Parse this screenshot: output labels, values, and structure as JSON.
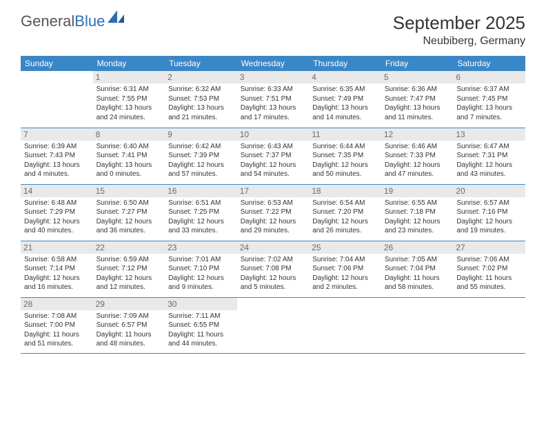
{
  "logo": {
    "text1": "General",
    "text2": "Blue"
  },
  "title": "September 2025",
  "subtitle": "Neubiberg, Germany",
  "colors": {
    "header_bg": "#3a87c7",
    "header_text": "#ffffff",
    "row_border": "#3a87c7",
    "daynum_bg": "#e9e9e9",
    "daynum_text": "#6b6b6b",
    "body_text": "#333333",
    "logo_gray": "#555555",
    "logo_blue": "#2a6fb5",
    "page_bg": "#ffffff"
  },
  "daysOfWeek": [
    "Sunday",
    "Monday",
    "Tuesday",
    "Wednesday",
    "Thursday",
    "Friday",
    "Saturday"
  ],
  "weeks": [
    [
      {
        "n": "",
        "sunrise": "",
        "sunset": "",
        "daylight1": "",
        "daylight2": ""
      },
      {
        "n": "1",
        "sunrise": "Sunrise: 6:31 AM",
        "sunset": "Sunset: 7:55 PM",
        "daylight1": "Daylight: 13 hours",
        "daylight2": "and 24 minutes."
      },
      {
        "n": "2",
        "sunrise": "Sunrise: 6:32 AM",
        "sunset": "Sunset: 7:53 PM",
        "daylight1": "Daylight: 13 hours",
        "daylight2": "and 21 minutes."
      },
      {
        "n": "3",
        "sunrise": "Sunrise: 6:33 AM",
        "sunset": "Sunset: 7:51 PM",
        "daylight1": "Daylight: 13 hours",
        "daylight2": "and 17 minutes."
      },
      {
        "n": "4",
        "sunrise": "Sunrise: 6:35 AM",
        "sunset": "Sunset: 7:49 PM",
        "daylight1": "Daylight: 13 hours",
        "daylight2": "and 14 minutes."
      },
      {
        "n": "5",
        "sunrise": "Sunrise: 6:36 AM",
        "sunset": "Sunset: 7:47 PM",
        "daylight1": "Daylight: 13 hours",
        "daylight2": "and 11 minutes."
      },
      {
        "n": "6",
        "sunrise": "Sunrise: 6:37 AM",
        "sunset": "Sunset: 7:45 PM",
        "daylight1": "Daylight: 13 hours",
        "daylight2": "and 7 minutes."
      }
    ],
    [
      {
        "n": "7",
        "sunrise": "Sunrise: 6:39 AM",
        "sunset": "Sunset: 7:43 PM",
        "daylight1": "Daylight: 13 hours",
        "daylight2": "and 4 minutes."
      },
      {
        "n": "8",
        "sunrise": "Sunrise: 6:40 AM",
        "sunset": "Sunset: 7:41 PM",
        "daylight1": "Daylight: 13 hours",
        "daylight2": "and 0 minutes."
      },
      {
        "n": "9",
        "sunrise": "Sunrise: 6:42 AM",
        "sunset": "Sunset: 7:39 PM",
        "daylight1": "Daylight: 12 hours",
        "daylight2": "and 57 minutes."
      },
      {
        "n": "10",
        "sunrise": "Sunrise: 6:43 AM",
        "sunset": "Sunset: 7:37 PM",
        "daylight1": "Daylight: 12 hours",
        "daylight2": "and 54 minutes."
      },
      {
        "n": "11",
        "sunrise": "Sunrise: 6:44 AM",
        "sunset": "Sunset: 7:35 PM",
        "daylight1": "Daylight: 12 hours",
        "daylight2": "and 50 minutes."
      },
      {
        "n": "12",
        "sunrise": "Sunrise: 6:46 AM",
        "sunset": "Sunset: 7:33 PM",
        "daylight1": "Daylight: 12 hours",
        "daylight2": "and 47 minutes."
      },
      {
        "n": "13",
        "sunrise": "Sunrise: 6:47 AM",
        "sunset": "Sunset: 7:31 PM",
        "daylight1": "Daylight: 12 hours",
        "daylight2": "and 43 minutes."
      }
    ],
    [
      {
        "n": "14",
        "sunrise": "Sunrise: 6:48 AM",
        "sunset": "Sunset: 7:29 PM",
        "daylight1": "Daylight: 12 hours",
        "daylight2": "and 40 minutes."
      },
      {
        "n": "15",
        "sunrise": "Sunrise: 6:50 AM",
        "sunset": "Sunset: 7:27 PM",
        "daylight1": "Daylight: 12 hours",
        "daylight2": "and 36 minutes."
      },
      {
        "n": "16",
        "sunrise": "Sunrise: 6:51 AM",
        "sunset": "Sunset: 7:25 PM",
        "daylight1": "Daylight: 12 hours",
        "daylight2": "and 33 minutes."
      },
      {
        "n": "17",
        "sunrise": "Sunrise: 6:53 AM",
        "sunset": "Sunset: 7:22 PM",
        "daylight1": "Daylight: 12 hours",
        "daylight2": "and 29 minutes."
      },
      {
        "n": "18",
        "sunrise": "Sunrise: 6:54 AM",
        "sunset": "Sunset: 7:20 PM",
        "daylight1": "Daylight: 12 hours",
        "daylight2": "and 26 minutes."
      },
      {
        "n": "19",
        "sunrise": "Sunrise: 6:55 AM",
        "sunset": "Sunset: 7:18 PM",
        "daylight1": "Daylight: 12 hours",
        "daylight2": "and 23 minutes."
      },
      {
        "n": "20",
        "sunrise": "Sunrise: 6:57 AM",
        "sunset": "Sunset: 7:16 PM",
        "daylight1": "Daylight: 12 hours",
        "daylight2": "and 19 minutes."
      }
    ],
    [
      {
        "n": "21",
        "sunrise": "Sunrise: 6:58 AM",
        "sunset": "Sunset: 7:14 PM",
        "daylight1": "Daylight: 12 hours",
        "daylight2": "and 16 minutes."
      },
      {
        "n": "22",
        "sunrise": "Sunrise: 6:59 AM",
        "sunset": "Sunset: 7:12 PM",
        "daylight1": "Daylight: 12 hours",
        "daylight2": "and 12 minutes."
      },
      {
        "n": "23",
        "sunrise": "Sunrise: 7:01 AM",
        "sunset": "Sunset: 7:10 PM",
        "daylight1": "Daylight: 12 hours",
        "daylight2": "and 9 minutes."
      },
      {
        "n": "24",
        "sunrise": "Sunrise: 7:02 AM",
        "sunset": "Sunset: 7:08 PM",
        "daylight1": "Daylight: 12 hours",
        "daylight2": "and 5 minutes."
      },
      {
        "n": "25",
        "sunrise": "Sunrise: 7:04 AM",
        "sunset": "Sunset: 7:06 PM",
        "daylight1": "Daylight: 12 hours",
        "daylight2": "and 2 minutes."
      },
      {
        "n": "26",
        "sunrise": "Sunrise: 7:05 AM",
        "sunset": "Sunset: 7:04 PM",
        "daylight1": "Daylight: 11 hours",
        "daylight2": "and 58 minutes."
      },
      {
        "n": "27",
        "sunrise": "Sunrise: 7:06 AM",
        "sunset": "Sunset: 7:02 PM",
        "daylight1": "Daylight: 11 hours",
        "daylight2": "and 55 minutes."
      }
    ],
    [
      {
        "n": "28",
        "sunrise": "Sunrise: 7:08 AM",
        "sunset": "Sunset: 7:00 PM",
        "daylight1": "Daylight: 11 hours",
        "daylight2": "and 51 minutes."
      },
      {
        "n": "29",
        "sunrise": "Sunrise: 7:09 AM",
        "sunset": "Sunset: 6:57 PM",
        "daylight1": "Daylight: 11 hours",
        "daylight2": "and 48 minutes."
      },
      {
        "n": "30",
        "sunrise": "Sunrise: 7:11 AM",
        "sunset": "Sunset: 6:55 PM",
        "daylight1": "Daylight: 11 hours",
        "daylight2": "and 44 minutes."
      },
      {
        "n": "",
        "sunrise": "",
        "sunset": "",
        "daylight1": "",
        "daylight2": ""
      },
      {
        "n": "",
        "sunrise": "",
        "sunset": "",
        "daylight1": "",
        "daylight2": ""
      },
      {
        "n": "",
        "sunrise": "",
        "sunset": "",
        "daylight1": "",
        "daylight2": ""
      },
      {
        "n": "",
        "sunrise": "",
        "sunset": "",
        "daylight1": "",
        "daylight2": ""
      }
    ]
  ]
}
